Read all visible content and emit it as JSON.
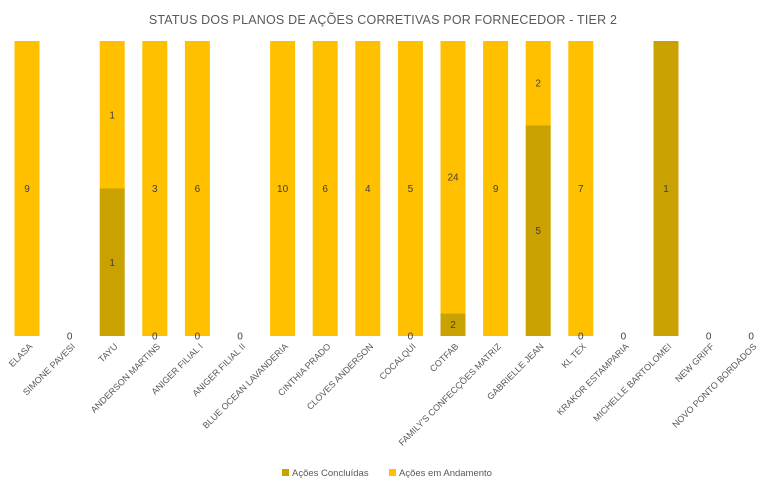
{
  "chart_data": {
    "type": "bar",
    "stacked": "percent",
    "title": "STATUS DOS PLANOS DE AÇÕES CORRETIVAS POR FORNECEDOR - TIER  2",
    "xlabel": "",
    "ylabel": "",
    "ylim": [
      0,
      100
    ],
    "grid": false,
    "legend_position": "bottom",
    "categories": [
      "ELASA",
      "SIMONE PAVESI",
      "TAYU",
      "ANDERSON MARTINS",
      "ANIGER FILIAL I",
      "ANIGER FILIAL II",
      "BLUE OCEAN LAVANDERIA",
      "CINTHIA PRADO",
      "CLOVES ANDERSON",
      "COCALQUI",
      "COTFAB",
      "FAMILY'S CONFECÇÕES MATRIZ",
      "GABRIELLE JEAN",
      "KL TEX",
      "KRAKOR ESTAMPARIA",
      "MICHELLE BARTOLOMEI",
      "NEW GRIFF",
      "NOVO PONTO BORDADOS"
    ],
    "series": [
      {
        "name": "Ações Concluídas",
        "color": "#c9a100",
        "values": [
          null,
          0,
          1,
          0,
          0,
          0,
          null,
          null,
          null,
          0,
          2,
          null,
          5,
          0,
          0,
          1,
          0,
          0
        ],
        "labels": [
          "",
          "0",
          "1",
          "0",
          "0",
          "0",
          "",
          "",
          "",
          "0",
          "2",
          "",
          "5",
          "0",
          "0",
          "1",
          "0",
          "0"
        ]
      },
      {
        "name": "Ações em Andamento",
        "color": "#ffc000",
        "values": [
          9,
          null,
          1,
          3,
          6,
          null,
          10,
          6,
          4,
          5,
          24,
          9,
          2,
          7,
          null,
          null,
          null,
          null
        ],
        "labels": [
          "9",
          "",
          "1",
          "3",
          "6",
          "",
          "10",
          "6",
          "4",
          "5",
          "24",
          "9",
          "2",
          "7",
          "",
          "",
          "",
          ""
        ]
      }
    ]
  }
}
